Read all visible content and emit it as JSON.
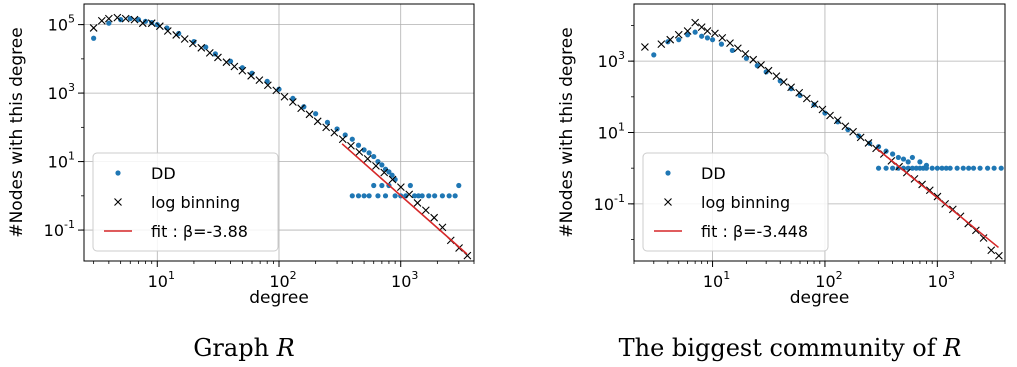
{
  "colors": {
    "dd": "#1f77b4",
    "log_binning": "#000000",
    "fit": "#d62728",
    "grid": "#b0b0b0"
  },
  "chart_data": [
    {
      "type": "scatter",
      "scale": {
        "x": "log",
        "y": "log"
      },
      "xlabel": "degree",
      "ylabel": "#Nodes with this degree",
      "caption_prefix": "Graph ",
      "caption_var": "R",
      "xlim": [
        2.5,
        4000
      ],
      "ylim": [
        0.0125,
        400000
      ],
      "grid": true,
      "legend_position": "lower-left",
      "x_ticks": [
        10,
        100,
        1000
      ],
      "x_tick_labels": [
        "10^1",
        "10^2",
        "10^3"
      ],
      "y_ticks": [
        0.1,
        10,
        1000,
        100000
      ],
      "y_tick_labels": [
        "10^-1",
        "10^1",
        "10^3",
        "10^5"
      ],
      "legend": [
        {
          "label": "DD",
          "marker": "dot"
        },
        {
          "label": "log binning",
          "marker": "x"
        },
        {
          "label": "fit : β=-3.88",
          "marker": "line"
        }
      ],
      "series": [
        {
          "name": "DD",
          "kind": "points",
          "points": [
            [
              3,
              40000
            ],
            [
              4,
              110000
            ],
            [
              5,
              140000
            ],
            [
              6,
              150000
            ],
            [
              7,
              140000
            ],
            [
              8,
              125000
            ],
            [
              9,
              115000
            ],
            [
              10,
              100000
            ],
            [
              12,
              80000
            ],
            [
              15,
              55000
            ],
            [
              20,
              32000
            ],
            [
              25,
              22000
            ],
            [
              30,
              14000
            ],
            [
              40,
              8500
            ],
            [
              50,
              5500
            ],
            [
              60,
              3800
            ],
            [
              80,
              2200
            ],
            [
              100,
              1300
            ],
            [
              130,
              700
            ],
            [
              160,
              400
            ],
            [
              200,
              250
            ],
            [
              250,
              140
            ],
            [
              300,
              90
            ],
            [
              350,
              60
            ],
            [
              400,
              45
            ],
            [
              450,
              30
            ],
            [
              500,
              22
            ],
            [
              550,
              18
            ],
            [
              600,
              14
            ],
            [
              650,
              10
            ],
            [
              700,
              8
            ],
            [
              750,
              6
            ],
            [
              800,
              5
            ],
            [
              850,
              4
            ],
            [
              900,
              3
            ],
            [
              400,
              1
            ],
            [
              450,
              1
            ],
            [
              500,
              1
            ],
            [
              550,
              1
            ],
            [
              600,
              2
            ],
            [
              650,
              1
            ],
            [
              700,
              2
            ],
            [
              750,
              1
            ],
            [
              800,
              2
            ],
            [
              900,
              1
            ],
            [
              1000,
              1
            ],
            [
              1100,
              1
            ],
            [
              1200,
              2
            ],
            [
              1300,
              1
            ],
            [
              1400,
              1
            ],
            [
              1500,
              1
            ],
            [
              1700,
              1
            ],
            [
              1900,
              1
            ],
            [
              2200,
              1
            ],
            [
              2500,
              1
            ],
            [
              2800,
              1
            ],
            [
              3000,
              2
            ]
          ]
        },
        {
          "name": "log binning",
          "kind": "x",
          "points": [
            [
              3,
              80000
            ],
            [
              3.5,
              130000
            ],
            [
              4,
              150000
            ],
            [
              4.7,
              160000
            ],
            [
              5.5,
              150000
            ],
            [
              6.5,
              140000
            ],
            [
              7.6,
              110000
            ],
            [
              9,
              110000
            ],
            [
              10.5,
              90000
            ],
            [
              12.2,
              65000
            ],
            [
              14.3,
              50000
            ],
            [
              16.8,
              38000
            ],
            [
              19.6,
              28000
            ],
            [
              23,
              21000
            ],
            [
              27,
              15000
            ],
            [
              31.5,
              11000
            ],
            [
              37,
              8000
            ],
            [
              43,
              6000
            ],
            [
              50,
              4500
            ],
            [
              59,
              3200
            ],
            [
              69,
              2400
            ],
            [
              81,
              1700
            ],
            [
              95,
              1200
            ],
            [
              111,
              780
            ],
            [
              130,
              550
            ],
            [
              152,
              360
            ],
            [
              178,
              240
            ],
            [
              208,
              150
            ],
            [
              244,
              100
            ],
            [
              285,
              70
            ],
            [
              334,
              45
            ],
            [
              390,
              29
            ],
            [
              457,
              19
            ],
            [
              535,
              12
            ],
            [
              626,
              7.5
            ],
            [
              732,
              4.8
            ],
            [
              857,
              3.0
            ],
            [
              1003,
              1.8
            ],
            [
              1174,
              1.1
            ],
            [
              1374,
              0.62
            ],
            [
              1608,
              0.38
            ],
            [
              1882,
              0.23
            ],
            [
              2203,
              0.12
            ],
            [
              2578,
              0.05
            ],
            [
              3017,
              0.03
            ],
            [
              3530,
              0.018
            ]
          ]
        },
        {
          "name": "fit : β=-3.88",
          "kind": "line",
          "points": [
            [
              330,
              33
            ],
            [
              3500,
              0.02
            ]
          ]
        }
      ]
    },
    {
      "type": "scatter",
      "scale": {
        "x": "log",
        "y": "log"
      },
      "xlabel": "degree",
      "ylabel": "#Nodes with this degree",
      "caption_prefix": "The biggest community of ",
      "caption_var": "R",
      "xlim": [
        2,
        4000
      ],
      "ylim": [
        0.0025,
        40000
      ],
      "grid": true,
      "legend_position": "lower-left",
      "x_ticks": [
        10,
        100,
        1000
      ],
      "x_tick_labels": [
        "10^1",
        "10^2",
        "10^3"
      ],
      "y_ticks": [
        0.1,
        10,
        1000
      ],
      "y_tick_labels": [
        "10^-1",
        "10^1",
        "10^3"
      ],
      "legend": [
        {
          "label": "DD",
          "marker": "dot"
        },
        {
          "label": "log binning",
          "marker": "x"
        },
        {
          "label": "fit : β=-3.448",
          "marker": "line"
        }
      ],
      "series": [
        {
          "name": "DD",
          "kind": "points",
          "points": [
            [
              3,
              1500
            ],
            [
              4,
              3500
            ],
            [
              5,
              4000
            ],
            [
              6,
              5500
            ],
            [
              7,
              6500
            ],
            [
              8,
              5000
            ],
            [
              9,
              4500
            ],
            [
              10,
              4000
            ],
            [
              12,
              3000
            ],
            [
              15,
              2000
            ],
            [
              20,
              1200
            ],
            [
              25,
              750
            ],
            [
              30,
              500
            ],
            [
              40,
              280
            ],
            [
              50,
              170
            ],
            [
              60,
              110
            ],
            [
              80,
              60
            ],
            [
              100,
              35
            ],
            [
              130,
              20
            ],
            [
              160,
              12
            ],
            [
              200,
              8
            ],
            [
              250,
              5
            ],
            [
              300,
              4
            ],
            [
              350,
              3
            ],
            [
              400,
              2.5
            ],
            [
              450,
              2
            ],
            [
              500,
              1.8
            ],
            [
              550,
              1.5
            ],
            [
              600,
              2
            ],
            [
              700,
              1.5
            ],
            [
              800,
              1.2
            ],
            [
              300,
              1
            ],
            [
              350,
              1
            ],
            [
              400,
              1
            ],
            [
              450,
              1
            ],
            [
              500,
              1
            ],
            [
              550,
              1
            ],
            [
              600,
              1
            ],
            [
              650,
              1
            ],
            [
              700,
              1
            ],
            [
              750,
              1
            ],
            [
              800,
              1
            ],
            [
              900,
              1
            ],
            [
              1000,
              1
            ],
            [
              1100,
              1
            ],
            [
              1200,
              1
            ],
            [
              1300,
              1
            ],
            [
              1500,
              1
            ],
            [
              1700,
              1
            ],
            [
              1900,
              1
            ],
            [
              2100,
              1
            ],
            [
              2400,
              1
            ],
            [
              2800,
              1
            ],
            [
              3200,
              1
            ],
            [
              3700,
              1
            ]
          ]
        },
        {
          "name": "log binning",
          "kind": "x",
          "points": [
            [
              2.5,
              2500
            ],
            [
              3.5,
              3000
            ],
            [
              4.2,
              4000
            ],
            [
              5,
              5500
            ],
            [
              6,
              7000
            ],
            [
              7,
              12000
            ],
            [
              8,
              9000
            ],
            [
              9,
              7000
            ],
            [
              10.5,
              6000
            ],
            [
              12.2,
              4500
            ],
            [
              14.3,
              3200
            ],
            [
              16.8,
              2300
            ],
            [
              19.6,
              1600
            ],
            [
              23,
              1100
            ],
            [
              27,
              780
            ],
            [
              31.5,
              540
            ],
            [
              37,
              380
            ],
            [
              43,
              260
            ],
            [
              50,
              185
            ],
            [
              59,
              130
            ],
            [
              69,
              90
            ],
            [
              81,
              62
            ],
            [
              95,
              44
            ],
            [
              111,
              30
            ],
            [
              130,
              22
            ],
            [
              152,
              15
            ],
            [
              178,
              10.5
            ],
            [
              208,
              7.3
            ],
            [
              244,
              5.1
            ],
            [
              285,
              3.6
            ],
            [
              334,
              2.5
            ],
            [
              390,
              1.6
            ],
            [
              457,
              1.1
            ],
            [
              535,
              0.75
            ],
            [
              626,
              0.5
            ],
            [
              732,
              0.35
            ],
            [
              857,
              0.24
            ],
            [
              1003,
              0.16
            ],
            [
              1174,
              0.1
            ],
            [
              1374,
              0.07
            ],
            [
              1608,
              0.045
            ],
            [
              1882,
              0.028
            ],
            [
              2203,
              0.018
            ],
            [
              2578,
              0.011
            ],
            [
              3017,
              0.005
            ],
            [
              3530,
              0.0035
            ]
          ]
        },
        {
          "name": "fit : β=-3.448",
          "kind": "line",
          "points": [
            [
              290,
              3.5
            ],
            [
              3500,
              0.006
            ]
          ]
        }
      ]
    }
  ]
}
